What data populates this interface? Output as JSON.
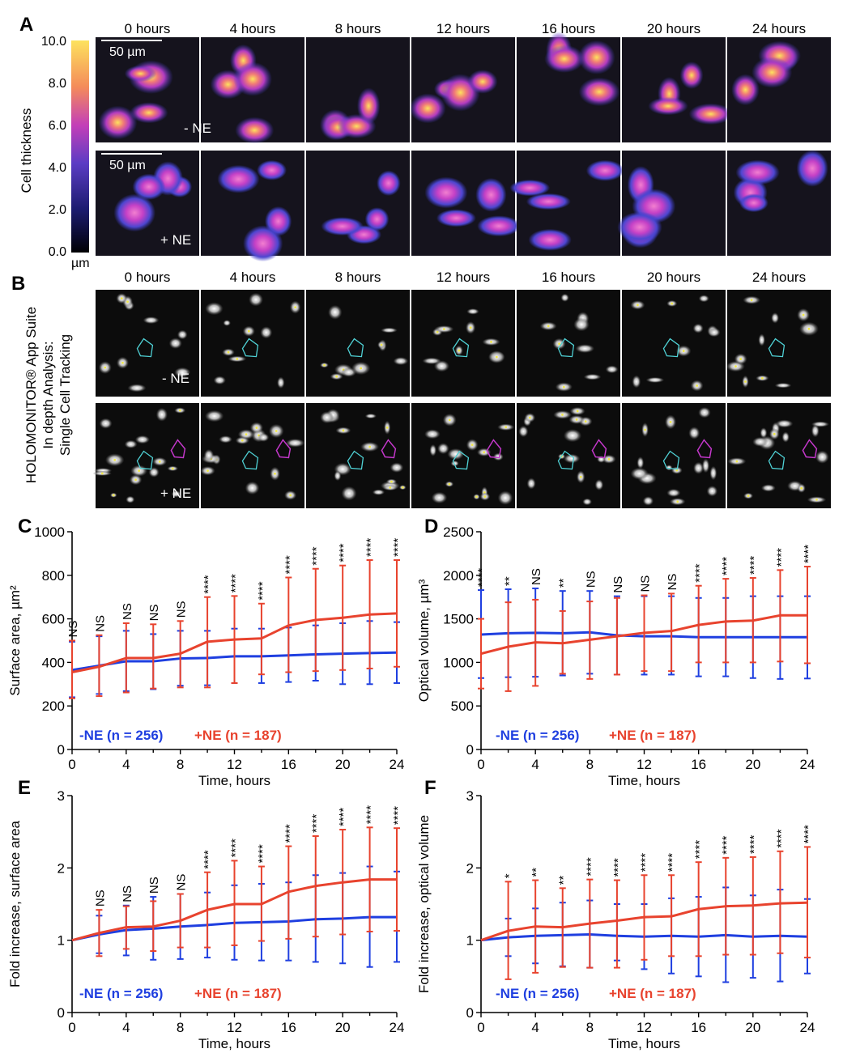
{
  "colors": {
    "ne_minus": "#1f3fe0",
    "ne_plus": "#e8432e",
    "axis": "#000000"
  },
  "panel_a": {
    "label": "A",
    "times": [
      "0 hours",
      "4 hours",
      "8 hours",
      "12 hours",
      "16 hours",
      "20 hours",
      "24 hours"
    ],
    "scale_bar": "50 µm",
    "rows": [
      "- NE",
      "+ NE"
    ],
    "colorbar": {
      "title": "Cell thickness",
      "unit": "µm",
      "ticks": [
        "10.0",
        "8.0",
        "6.0",
        "4.0",
        "2.0",
        "0.0"
      ]
    }
  },
  "panel_b": {
    "label": "B",
    "times": [
      "0 hours",
      "4 hours",
      "8 hours",
      "12 hours",
      "16 hours",
      "20 hours",
      "24 hours"
    ],
    "rows": [
      "- NE",
      "+ NE"
    ],
    "side_title": [
      "HOLOMONITOR® App Suite",
      "In depth Analysis:",
      "Single Cell Tracking"
    ]
  },
  "chart_data": [
    {
      "id": "C",
      "label": "C",
      "type": "line",
      "xlabel": "Time, hours",
      "ylabel": "Surface area, µm²",
      "xlim": [
        0,
        24
      ],
      "ylim": [
        0,
        1000
      ],
      "xticks": [
        0,
        4,
        8,
        12,
        16,
        20,
        24
      ],
      "yticks": [
        0,
        200,
        400,
        600,
        800,
        1000
      ],
      "x": [
        0,
        2,
        4,
        6,
        8,
        10,
        12,
        14,
        16,
        18,
        20,
        22,
        24
      ],
      "series": [
        {
          "name": "-NE (n = 256)",
          "values": [
            365,
            385,
            405,
            405,
            418,
            420,
            428,
            428,
            432,
            437,
            440,
            443,
            445
          ],
          "err_low": [
            240,
            255,
            268,
            277,
            293,
            295,
            305,
            305,
            310,
            316,
            300,
            300,
            305
          ],
          "err_high": [
            495,
            520,
            545,
            530,
            545,
            545,
            555,
            555,
            560,
            570,
            580,
            590,
            585
          ]
        },
        {
          "name": "+NE (n = 187)",
          "values": [
            355,
            380,
            420,
            420,
            440,
            495,
            505,
            510,
            570,
            595,
            605,
            620,
            625
          ],
          "err_low": [
            235,
            245,
            262,
            280,
            285,
            285,
            305,
            345,
            355,
            360,
            365,
            372,
            380
          ],
          "err_high": [
            500,
            525,
            580,
            575,
            590,
            700,
            705,
            670,
            790,
            830,
            845,
            870,
            870
          ]
        }
      ],
      "annotations": [
        "NS",
        "NS",
        "NS",
        "NS",
        "NS",
        "****",
        "****",
        "****",
        "****",
        "****",
        "****",
        "****",
        "****"
      ]
    },
    {
      "id": "D",
      "label": "D",
      "type": "line",
      "xlabel": "Time, hours",
      "ylabel": "Optical volume, µm³",
      "xlim": [
        0,
        24
      ],
      "ylim": [
        0,
        2500
      ],
      "xticks": [
        0,
        4,
        8,
        12,
        16,
        20,
        24
      ],
      "yticks": [
        0,
        500,
        1000,
        1500,
        2000,
        2500
      ],
      "x": [
        0,
        2,
        4,
        6,
        8,
        10,
        12,
        14,
        16,
        18,
        20,
        22,
        24
      ],
      "series": [
        {
          "name": "-NE (n = 256)",
          "values": [
            1320,
            1335,
            1340,
            1335,
            1345,
            1310,
            1300,
            1300,
            1290,
            1290,
            1290,
            1290,
            1290
          ],
          "err_low": [
            820,
            830,
            835,
            850,
            870,
            860,
            860,
            860,
            840,
            840,
            820,
            810,
            815
          ],
          "err_high": [
            1830,
            1840,
            1850,
            1820,
            1820,
            1760,
            1760,
            1760,
            1740,
            1740,
            1760,
            1760,
            1760
          ]
        },
        {
          "name": "+NE (n = 187)",
          "values": [
            1100,
            1180,
            1230,
            1220,
            1260,
            1300,
            1340,
            1360,
            1430,
            1470,
            1480,
            1540,
            1540
          ],
          "err_low": [
            700,
            670,
            730,
            870,
            810,
            860,
            900,
            900,
            1000,
            1000,
            1000,
            1010,
            990
          ],
          "err_high": [
            1500,
            1690,
            1720,
            1590,
            1700,
            1740,
            1770,
            1790,
            1880,
            1960,
            1970,
            2060,
            2100
          ]
        }
      ],
      "annotations": [
        "****",
        "**",
        "NS",
        "**",
        "NS",
        "NS",
        "NS",
        "NS",
        "****",
        "****",
        "****",
        "****",
        "****"
      ]
    },
    {
      "id": "E",
      "label": "E",
      "type": "line",
      "xlabel": "Time, hours",
      "ylabel": "Fold increase, surface area",
      "xlim": [
        0,
        24
      ],
      "ylim": [
        0,
        3
      ],
      "xticks": [
        0,
        4,
        8,
        12,
        16,
        20,
        24
      ],
      "yticks": [
        0,
        1,
        2,
        3
      ],
      "x": [
        0,
        2,
        4,
        6,
        8,
        10,
        12,
        14,
        16,
        18,
        20,
        22,
        24
      ],
      "series": [
        {
          "name": "-NE (n = 256)",
          "values": [
            1.0,
            1.08,
            1.14,
            1.16,
            1.19,
            1.21,
            1.24,
            1.25,
            1.26,
            1.29,
            1.3,
            1.32,
            1.32
          ],
          "err_low": [
            1.0,
            0.82,
            0.79,
            0.73,
            0.74,
            0.76,
            0.73,
            0.72,
            0.72,
            0.7,
            0.68,
            0.63,
            0.7
          ],
          "err_high": [
            1.0,
            1.34,
            1.48,
            1.6,
            1.64,
            1.66,
            1.76,
            1.78,
            1.8,
            1.9,
            1.93,
            2.02,
            1.95
          ]
        },
        {
          "name": "+NE (n = 187)",
          "values": [
            1.0,
            1.1,
            1.18,
            1.19,
            1.27,
            1.42,
            1.5,
            1.5,
            1.67,
            1.75,
            1.8,
            1.84,
            1.84
          ],
          "err_low": [
            1.0,
            0.78,
            0.88,
            0.85,
            0.9,
            0.9,
            0.93,
            0.99,
            1.02,
            1.05,
            1.08,
            1.12,
            1.13
          ],
          "err_high": [
            1.0,
            1.42,
            1.47,
            1.54,
            1.64,
            1.94,
            2.1,
            2.02,
            2.3,
            2.44,
            2.53,
            2.56,
            2.55
          ]
        }
      ],
      "annotations": [
        "",
        "NS",
        "NS",
        "NS",
        "NS",
        "****",
        "****",
        "****",
        "****",
        "****",
        "****",
        "****",
        "****"
      ]
    },
    {
      "id": "F",
      "label": "F",
      "type": "line",
      "xlabel": "Time, hours",
      "ylabel": "Fold increase, optical volume",
      "xlim": [
        0,
        24
      ],
      "ylim": [
        0,
        3
      ],
      "xticks": [
        0,
        4,
        8,
        12,
        16,
        20,
        24
      ],
      "yticks": [
        0,
        1,
        2,
        3
      ],
      "x": [
        0,
        2,
        4,
        6,
        8,
        10,
        12,
        14,
        16,
        18,
        20,
        22,
        24
      ],
      "series": [
        {
          "name": "-NE (n = 256)",
          "values": [
            1.0,
            1.04,
            1.06,
            1.07,
            1.08,
            1.06,
            1.05,
            1.06,
            1.05,
            1.07,
            1.05,
            1.06,
            1.05
          ],
          "err_low": [
            1.0,
            0.78,
            0.68,
            0.64,
            0.62,
            0.72,
            0.6,
            0.54,
            0.5,
            0.42,
            0.48,
            0.43,
            0.54
          ],
          "err_high": [
            1.0,
            1.3,
            1.44,
            1.52,
            1.55,
            1.5,
            1.5,
            1.58,
            1.6,
            1.73,
            1.62,
            1.7,
            1.57
          ]
        },
        {
          "name": "+NE (n = 187)",
          "values": [
            1.0,
            1.13,
            1.19,
            1.18,
            1.23,
            1.27,
            1.32,
            1.33,
            1.43,
            1.47,
            1.48,
            1.51,
            1.52
          ],
          "err_low": [
            1.0,
            0.46,
            0.55,
            0.63,
            0.62,
            0.62,
            0.73,
            0.78,
            0.78,
            0.8,
            0.8,
            0.82,
            0.76
          ],
          "err_high": [
            1.0,
            1.81,
            1.83,
            1.72,
            1.84,
            1.83,
            1.9,
            1.9,
            2.08,
            2.14,
            2.15,
            2.23,
            2.29
          ]
        }
      ],
      "annotations": [
        "",
        "*",
        "**",
        "**",
        "****",
        "****",
        "****",
        "****",
        "****",
        "****",
        "****",
        "****",
        "****"
      ]
    }
  ]
}
